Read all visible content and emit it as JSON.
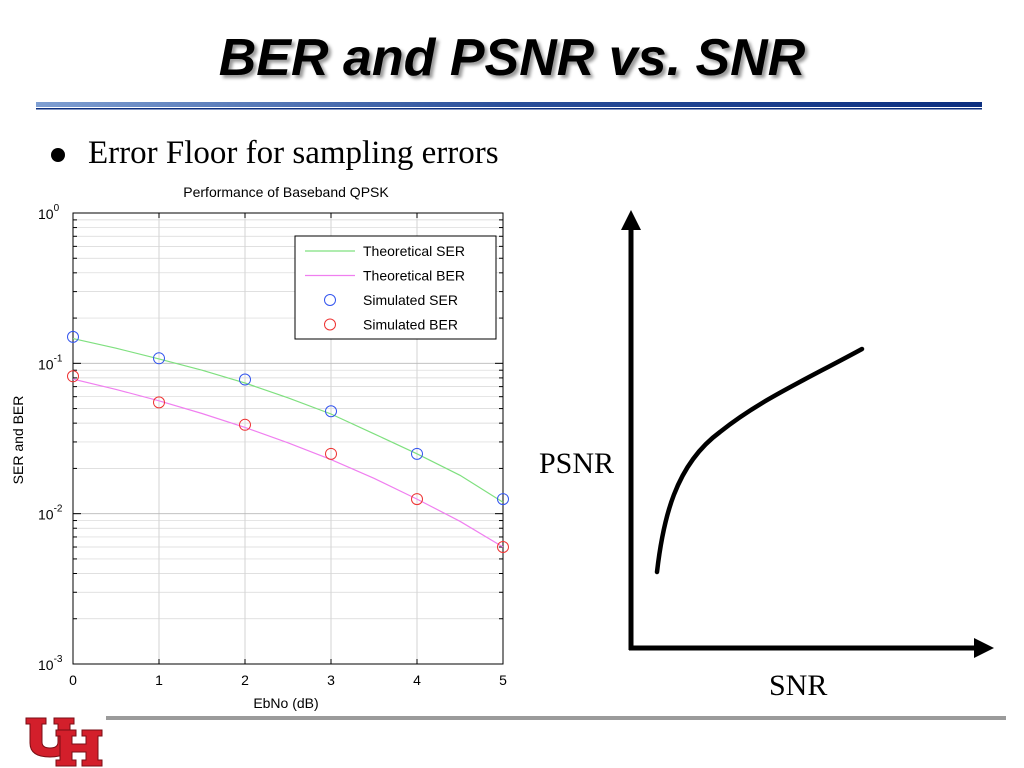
{
  "slide": {
    "title": "BER and PSNR vs. SNR",
    "bullet": "Error Floor for sampling errors"
  },
  "chart_data": {
    "type": "scatter",
    "title": "Performance of Baseband QPSK",
    "xlabel": "EbNo (dB)",
    "ylabel": "SER and BER",
    "y_scale": "log",
    "xlim": [
      0,
      5
    ],
    "ylim": [
      0.001,
      1
    ],
    "x_ticks": [
      "0",
      "1",
      "2",
      "3",
      "4",
      "5"
    ],
    "y_ticks": [
      {
        "value": 1,
        "base": "10",
        "exp": "0"
      },
      {
        "value": 0.1,
        "base": "10",
        "exp": "-1"
      },
      {
        "value": 0.01,
        "base": "10",
        "exp": "-2"
      },
      {
        "value": 0.001,
        "base": "10",
        "exp": "-3"
      }
    ],
    "grid": true,
    "legend_position": "top-right",
    "series": [
      {
        "name": "Theoretical SER",
        "kind": "line",
        "color": "#7fe07f",
        "x": [
          0,
          0.5,
          1,
          1.5,
          2,
          2.5,
          3,
          3.5,
          4,
          4.5,
          5
        ],
        "y": [
          0.146,
          0.126,
          0.107,
          0.09,
          0.074,
          0.059,
          0.046,
          0.034,
          0.025,
          0.018,
          0.0119
        ]
      },
      {
        "name": "Theoretical BER",
        "kind": "line",
        "color": "#f07ff0",
        "x": [
          0,
          0.5,
          1,
          1.5,
          2,
          2.5,
          3,
          3.5,
          4,
          4.5,
          5
        ],
        "y": [
          0.0786,
          0.0671,
          0.0563,
          0.0464,
          0.0375,
          0.0296,
          0.0229,
          0.0172,
          0.0125,
          0.0089,
          0.006
        ]
      },
      {
        "name": "Simulated SER",
        "kind": "marker",
        "color": "#3355ee",
        "x": [
          0,
          1,
          2,
          3,
          4,
          5
        ],
        "y": [
          0.15,
          0.108,
          0.078,
          0.048,
          0.025,
          0.0125
        ]
      },
      {
        "name": "Simulated BER",
        "kind": "marker",
        "color": "#ee3333",
        "x": [
          0,
          1,
          2,
          3,
          4,
          5
        ],
        "y": [
          0.082,
          0.055,
          0.039,
          0.025,
          0.0125,
          0.006
        ]
      }
    ]
  },
  "sketch": {
    "type": "line",
    "ylabel": "PSNR",
    "xlabel": "SNR"
  }
}
